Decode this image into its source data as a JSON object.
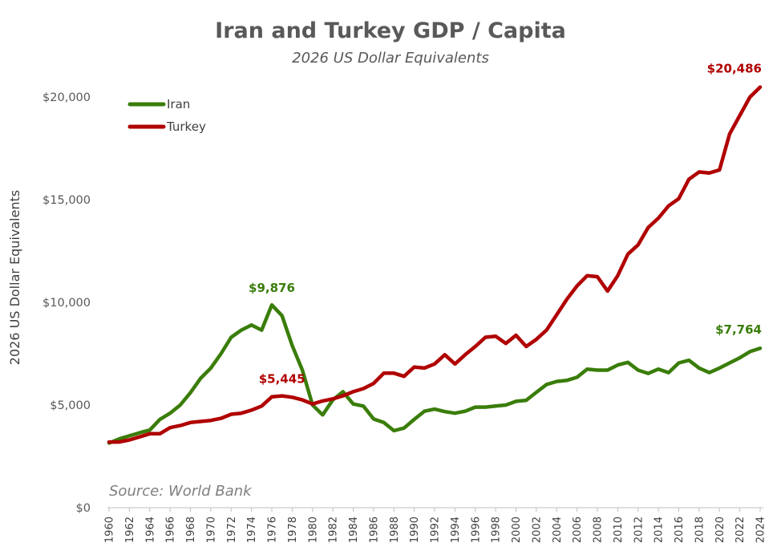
{
  "chart_data": {
    "type": "line",
    "title": "Iran and Turkey GDP / Capita",
    "subtitle": "2026 US Dollar Equivalents",
    "ylabel": "2026 US Dollar Equivalents",
    "xlabel": "",
    "ylim": [
      0,
      20000
    ],
    "yticks": [
      0,
      5000,
      10000,
      15000,
      20000
    ],
    "ytick_labels": [
      "$0",
      "$5,000",
      "$10,000",
      "$15,000",
      "$20,000"
    ],
    "xlim": [
      1960,
      2024
    ],
    "xticks": [
      1960,
      1962,
      1964,
      1966,
      1968,
      1970,
      1972,
      1974,
      1976,
      1978,
      1980,
      1982,
      1984,
      1986,
      1988,
      1990,
      1992,
      1994,
      1996,
      1998,
      2000,
      2002,
      2004,
      2006,
      2008,
      2010,
      2012,
      2014,
      2016,
      2018,
      2020,
      2022,
      2024
    ],
    "legend_position": "top-left",
    "source": "Source: World Bank",
    "series": [
      {
        "name": "Iran",
        "color": "#3a7d0a",
        "x": [
          1960,
          1961,
          1962,
          1963,
          1964,
          1965,
          1966,
          1967,
          1968,
          1969,
          1970,
          1971,
          1972,
          1973,
          1974,
          1975,
          1976,
          1977,
          1978,
          1979,
          1980,
          1981,
          1982,
          1983,
          1984,
          1985,
          1986,
          1987,
          1988,
          1989,
          1990,
          1991,
          1992,
          1993,
          1994,
          1995,
          1996,
          1997,
          1998,
          1999,
          2000,
          2001,
          2002,
          2003,
          2004,
          2005,
          2006,
          2007,
          2008,
          2009,
          2010,
          2011,
          2012,
          2013,
          2014,
          2015,
          2016,
          2017,
          2018,
          2019,
          2020,
          2021,
          2022,
          2023,
          2024
        ],
        "values": [
          3150,
          3350,
          3500,
          3650,
          3780,
          4300,
          4600,
          5000,
          5600,
          6300,
          6800,
          7500,
          8300,
          8650,
          8900,
          8650,
          9876,
          9350,
          7900,
          6700,
          5000,
          4520,
          5250,
          5650,
          5050,
          4950,
          4320,
          4150,
          3750,
          3880,
          4300,
          4700,
          4800,
          4680,
          4600,
          4700,
          4900,
          4900,
          4950,
          5000,
          5180,
          5230,
          5620,
          6000,
          6150,
          6200,
          6350,
          6750,
          6700,
          6700,
          6950,
          7080,
          6700,
          6540,
          6750,
          6580,
          7050,
          7180,
          6800,
          6580,
          6800,
          7050,
          7300,
          7600,
          7764
        ]
      },
      {
        "name": "Turkey",
        "color": "#b00000",
        "x": [
          1960,
          1961,
          1962,
          1963,
          1964,
          1965,
          1966,
          1967,
          1968,
          1969,
          1970,
          1971,
          1972,
          1973,
          1974,
          1975,
          1976,
          1977,
          1978,
          1979,
          1980,
          1981,
          1982,
          1983,
          1984,
          1985,
          1986,
          1987,
          1988,
          1989,
          1990,
          1991,
          1992,
          1993,
          1994,
          1995,
          1996,
          1997,
          1998,
          1999,
          2000,
          2001,
          2002,
          2003,
          2004,
          2005,
          2006,
          2007,
          2008,
          2009,
          2010,
          2011,
          2012,
          2013,
          2014,
          2015,
          2016,
          2017,
          2018,
          2019,
          2020,
          2021,
          2022,
          2023,
          2024
        ],
        "values": [
          3200,
          3200,
          3300,
          3450,
          3600,
          3600,
          3900,
          4000,
          4150,
          4200,
          4250,
          4350,
          4550,
          4600,
          4750,
          4950,
          5400,
          5445,
          5380,
          5250,
          5050,
          5200,
          5300,
          5450,
          5650,
          5800,
          6050,
          6550,
          6550,
          6400,
          6850,
          6800,
          7000,
          7450,
          7000,
          7450,
          7850,
          8300,
          8350,
          8000,
          8400,
          7850,
          8200,
          8650,
          9400,
          10150,
          10800,
          11300,
          11250,
          10550,
          11300,
          12350,
          12800,
          13650,
          14100,
          14700,
          15050,
          16000,
          16350,
          16300,
          16450,
          18200,
          19100,
          20000,
          20486
        ]
      }
    ],
    "annotations": [
      {
        "series": "Iran",
        "x": 1976,
        "value": 9876,
        "text": "$9,876"
      },
      {
        "series": "Turkey",
        "x": 1977,
        "value": 5445,
        "text": "$5,445"
      },
      {
        "series": "Turkey",
        "x": 2024,
        "value": 20486,
        "text": "$20,486"
      },
      {
        "series": "Iran",
        "x": 2024,
        "value": 7764,
        "text": "$7,764"
      }
    ]
  }
}
